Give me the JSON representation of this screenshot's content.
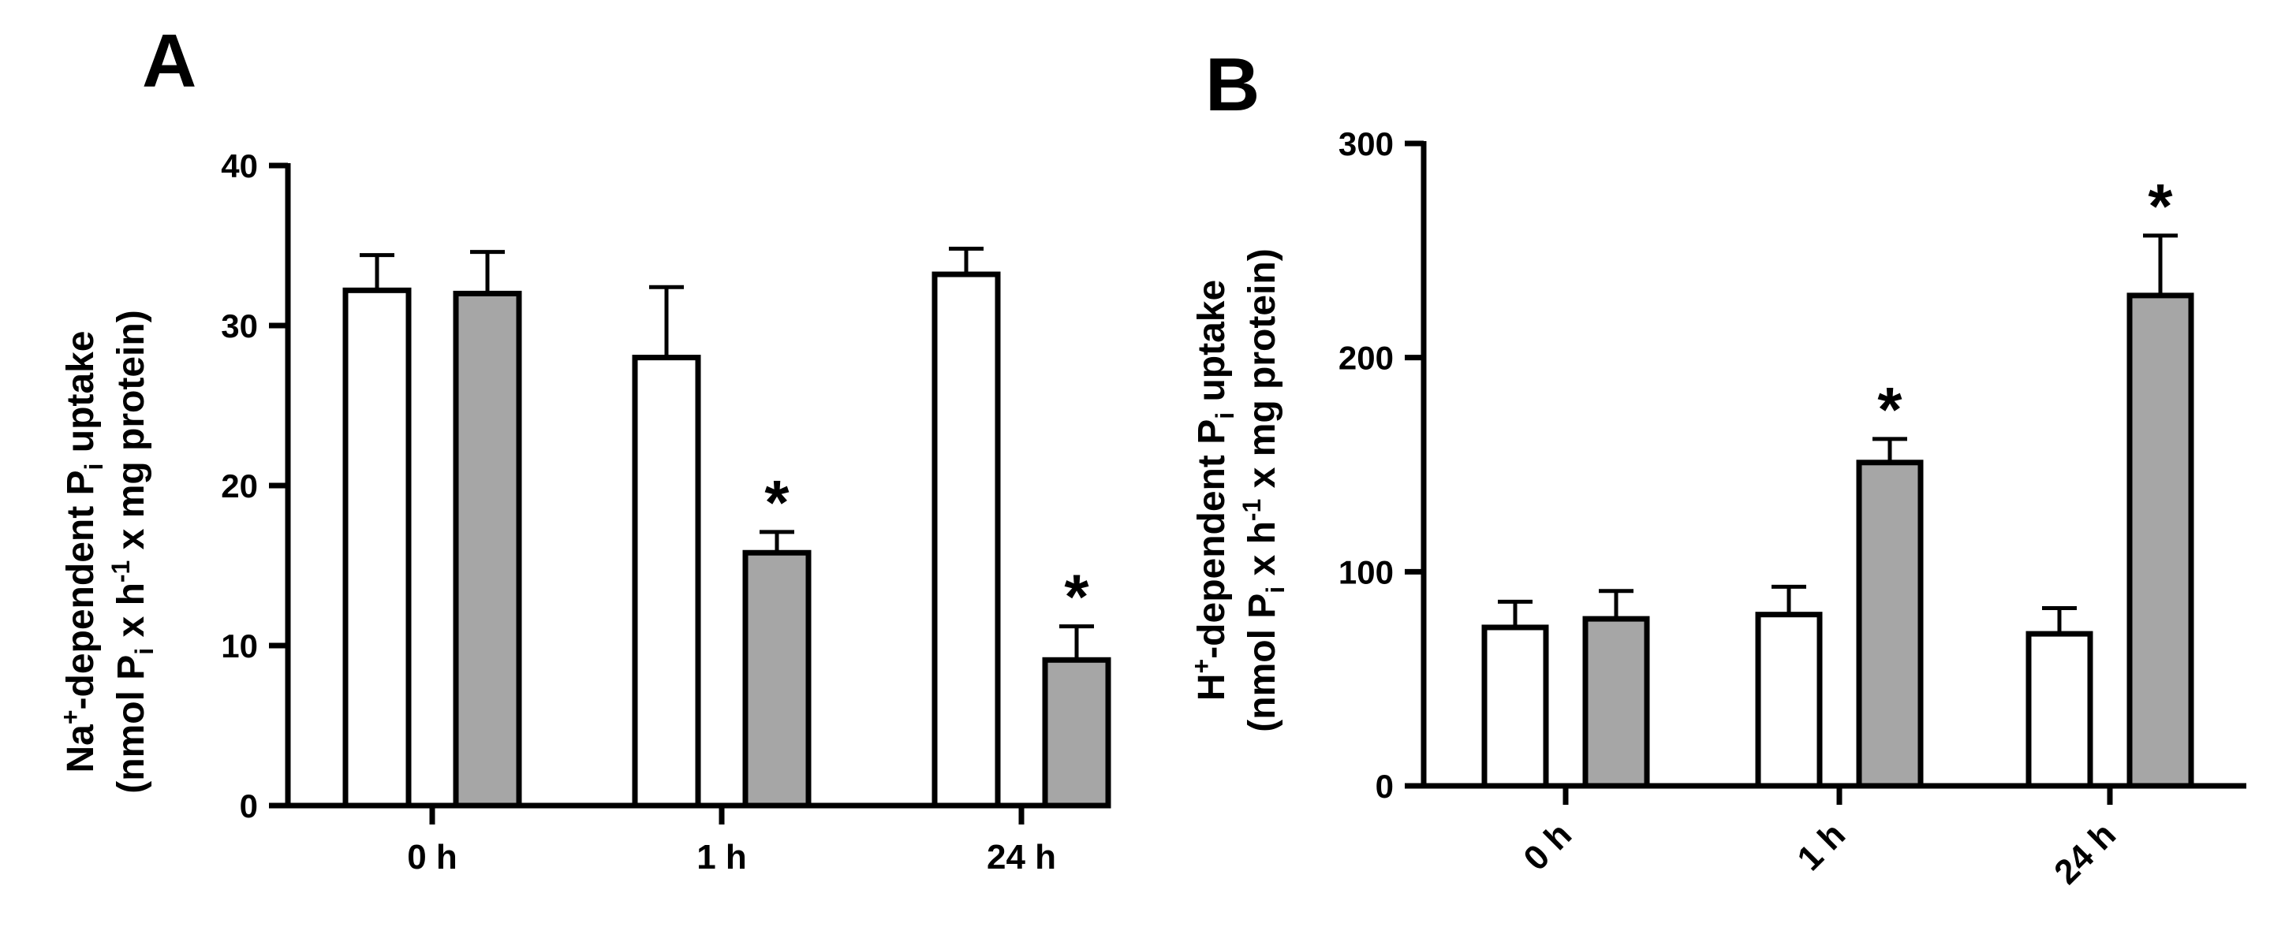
{
  "panels": [
    {
      "label": "A",
      "ylabel_line1": {
        "pre": "Na",
        "sup": "+",
        "mid": "-dependent P",
        "sub": "i",
        "post": " uptake"
      },
      "ylabel_line2": {
        "pre": "(nmol P",
        "sub": "i",
        "mid": " x h",
        "sup": "-1",
        "post": " x mg protein)"
      }
    },
    {
      "label": "B",
      "ylabel_line1": {
        "pre": "H",
        "sup": "+",
        "mid": "-dependent P",
        "sub": "i",
        "post": " uptake"
      },
      "ylabel_line2": {
        "pre": "(nmol P",
        "sub": "i",
        "mid": " x h",
        "sup": "-1",
        "post": " x mg protein)"
      }
    }
  ],
  "chart_data": [
    {
      "type": "bar",
      "panel": "A",
      "categories": [
        "0 h",
        "1 h",
        "24 h"
      ],
      "series": [
        {
          "fill": "#ffffff",
          "values": [
            32.2,
            28.0,
            33.2
          ],
          "errors": [
            2.2,
            4.4,
            1.6
          ]
        },
        {
          "fill": "#a6a6a6",
          "values": [
            32.0,
            15.8,
            9.1
          ],
          "errors": [
            2.6,
            1.3,
            2.1
          ]
        }
      ],
      "significance": [
        {
          "category": "1 h",
          "series": 1,
          "mark": "*"
        },
        {
          "category": "24 h",
          "series": 1,
          "mark": "*"
        }
      ],
      "ylim": [
        0,
        40
      ],
      "yticks": [
        0,
        10,
        20,
        30,
        40
      ],
      "xtick_rotation": 0
    },
    {
      "type": "bar",
      "panel": "B",
      "categories": [
        "0 h",
        "1 h",
        "24 h"
      ],
      "series": [
        {
          "fill": "#ffffff",
          "values": [
            74,
            80,
            71
          ],
          "errors": [
            12,
            13,
            12
          ]
        },
        {
          "fill": "#a6a6a6",
          "values": [
            78,
            151,
            229
          ],
          "errors": [
            13,
            11,
            28
          ]
        }
      ],
      "significance": [
        {
          "category": "1 h",
          "series": 1,
          "mark": "*"
        },
        {
          "category": "24 h",
          "series": 1,
          "mark": "*"
        }
      ],
      "ylim": [
        0,
        300
      ],
      "yticks": [
        0,
        100,
        200,
        300
      ],
      "xtick_rotation": -45
    }
  ]
}
